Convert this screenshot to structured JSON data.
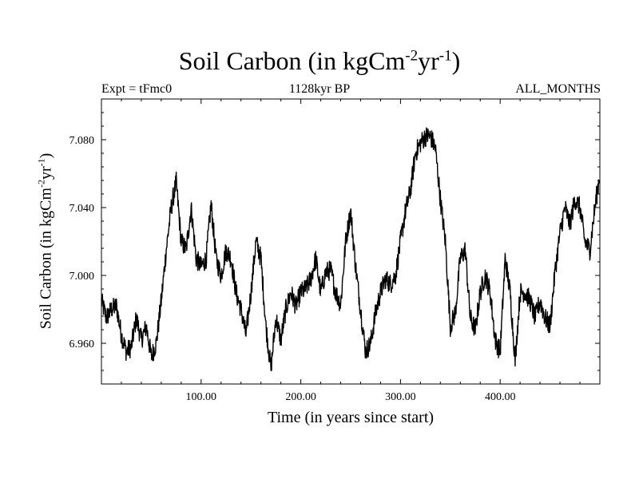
{
  "chart_data": {
    "type": "line",
    "title": {
      "main": "Soil Carbon (in kgCm",
      "sup1": "-2",
      "mid": "yr",
      "sup2": "-1",
      "end": ")"
    },
    "subtitle_left": "Expt = tFmc0",
    "subtitle_center": "1128kyr BP",
    "subtitle_right": "ALL_MONTHS",
    "xlabel": "Time (in years since start)",
    "ylabel": {
      "main": "Soil Carbon (in kgCm",
      "sup1": "-2",
      "mid": "yr",
      "sup2": "-1",
      "end": ")"
    },
    "xlim": [
      0,
      500
    ],
    "ylim": [
      6.936,
      7.104
    ],
    "x_ticks": [
      100,
      200,
      300,
      400
    ],
    "x_tick_labels": [
      "100.00",
      "200.00",
      "300.00",
      "400.00"
    ],
    "y_ticks": [
      6.96,
      7.0,
      7.04,
      7.08
    ],
    "y_tick_labels": [
      "6.960",
      "7.000",
      "7.040",
      "7.080"
    ],
    "series": [
      {
        "name": "Soil Carbon",
        "color": "#000000",
        "x": [
          0,
          5,
          10,
          15,
          20,
          25,
          30,
          35,
          40,
          45,
          50,
          55,
          60,
          65,
          70,
          75,
          80,
          85,
          90,
          95,
          100,
          105,
          110,
          115,
          120,
          125,
          130,
          135,
          140,
          145,
          150,
          155,
          160,
          165,
          170,
          175,
          180,
          185,
          190,
          195,
          200,
          205,
          210,
          215,
          220,
          225,
          230,
          235,
          240,
          245,
          250,
          255,
          260,
          265,
          270,
          275,
          280,
          285,
          290,
          295,
          300,
          305,
          310,
          315,
          320,
          325,
          330,
          335,
          340,
          345,
          350,
          355,
          360,
          365,
          370,
          375,
          380,
          385,
          390,
          395,
          400,
          405,
          410,
          415,
          420,
          425,
          430,
          435,
          440,
          445,
          450,
          455,
          460,
          465,
          470,
          475,
          480,
          485,
          490,
          495,
          500
        ],
        "values": [
          6.985,
          6.975,
          6.98,
          6.982,
          6.965,
          6.955,
          6.958,
          6.975,
          6.962,
          6.97,
          6.952,
          6.96,
          6.985,
          7.015,
          7.04,
          7.055,
          7.02,
          7.015,
          7.04,
          7.01,
          7.005,
          7.01,
          7.042,
          7.01,
          7.0,
          7.015,
          7.01,
          6.99,
          6.98,
          6.965,
          6.99,
          7.02,
          7.01,
          6.97,
          6.945,
          6.975,
          6.962,
          6.98,
          6.99,
          6.982,
          6.99,
          6.992,
          6.998,
          7.01,
          6.99,
          7.002,
          7.003,
          6.99,
          6.983,
          7.02,
          7.038,
          7.005,
          6.98,
          6.955,
          6.96,
          6.978,
          6.99,
          6.998,
          6.995,
          7.0,
          7.02,
          7.038,
          7.05,
          7.072,
          7.078,
          7.082,
          7.082,
          7.075,
          7.045,
          7.02,
          6.97,
          6.978,
          7.01,
          7.015,
          6.975,
          6.968,
          6.99,
          7.0,
          6.99,
          6.962,
          6.955,
          7.01,
          6.99,
          6.95,
          6.99,
          6.99,
          6.985,
          6.975,
          6.985,
          6.975,
          6.97,
          7.002,
          7.025,
          7.04,
          7.03,
          7.045,
          7.04,
          7.02,
          7.015,
          7.04,
          7.06
        ]
      }
    ]
  }
}
